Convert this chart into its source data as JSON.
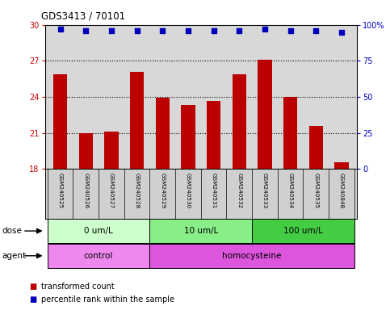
{
  "title": "GDS3413 / 70101",
  "samples": [
    "GSM240525",
    "GSM240526",
    "GSM240527",
    "GSM240528",
    "GSM240529",
    "GSM240530",
    "GSM240531",
    "GSM240532",
    "GSM240533",
    "GSM240534",
    "GSM240535",
    "GSM240848"
  ],
  "bar_values": [
    25.9,
    21.0,
    21.1,
    26.05,
    23.95,
    23.3,
    23.65,
    25.85,
    27.1,
    24.0,
    21.6,
    18.55
  ],
  "percentile_values": [
    97,
    96,
    96,
    96,
    96,
    96,
    96,
    96,
    97,
    96,
    96,
    95
  ],
  "ylim_left": [
    18,
    30
  ],
  "ylim_right": [
    0,
    100
  ],
  "yticks_left": [
    18,
    21,
    24,
    27,
    30
  ],
  "yticks_right": [
    0,
    25,
    50,
    75,
    100
  ],
  "yticklabels_right": [
    "0",
    "25",
    "50",
    "75",
    "100%"
  ],
  "bar_color": "#bb0000",
  "dot_color": "#0000bb",
  "axis_color_left": "#cc0000",
  "axis_color_right": "#0000cc",
  "dose_groups": [
    {
      "label": "0 um/L",
      "start": 0,
      "end": 4,
      "color": "#ccffcc"
    },
    {
      "label": "10 um/L",
      "start": 4,
      "end": 8,
      "color": "#88ee88"
    },
    {
      "label": "100 um/L",
      "start": 8,
      "end": 12,
      "color": "#44cc44"
    }
  ],
  "agent_groups": [
    {
      "label": "control",
      "start": 0,
      "end": 4,
      "color": "#ee88ee"
    },
    {
      "label": "homocysteine",
      "start": 4,
      "end": 12,
      "color": "#dd55dd"
    }
  ],
  "dose_label": "dose",
  "agent_label": "agent",
  "legend_bar_label": "transformed count",
  "legend_dot_label": "percentile rank within the sample",
  "bg_color": "#ffffff",
  "plot_bg_color": "#d8d8d8",
  "sample_bg_color": "#d0d0d0"
}
